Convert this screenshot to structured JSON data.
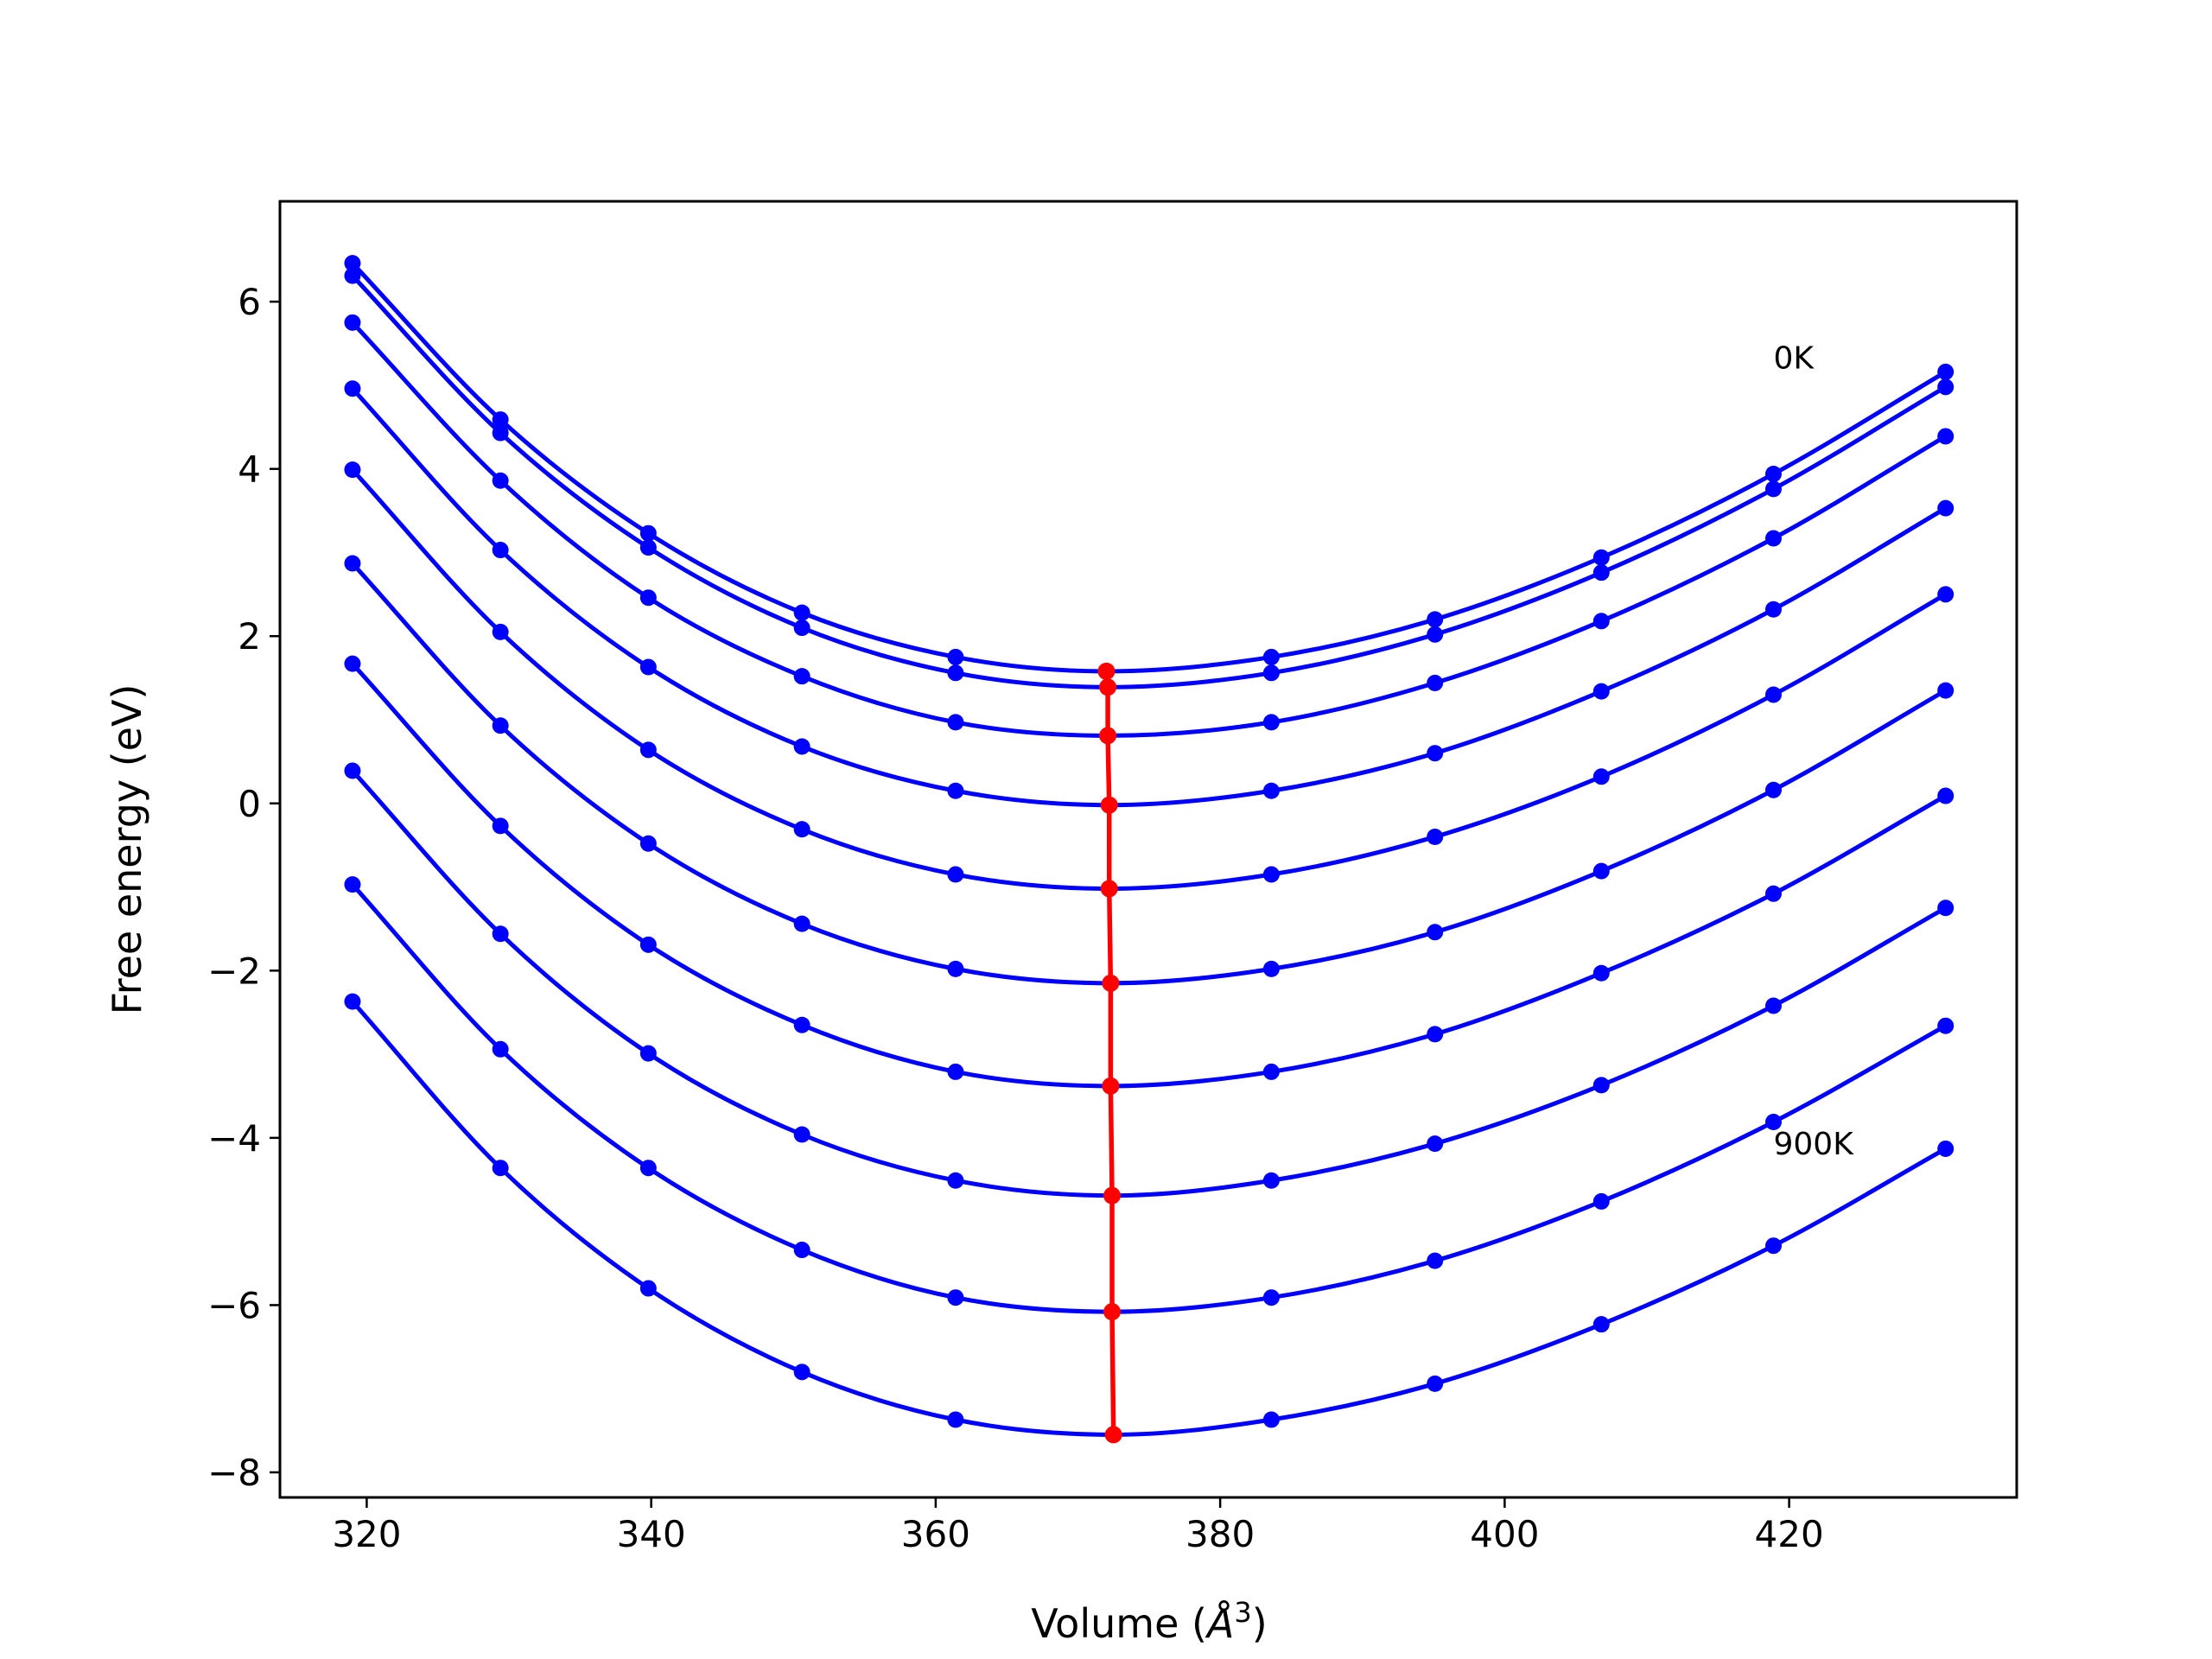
{
  "chart_data": {
    "type": "line",
    "xlabel": "Volume (",
    "xlabel_unit": "Å",
    "xlabel_exp": "3",
    "xlabel_close": ")",
    "ylabel": "Free energy (eV)",
    "xlim": [
      313.9,
      436.0
    ],
    "ylim": [
      -8.3,
      7.2
    ],
    "grid": false,
    "x_ticks": [
      320,
      340,
      360,
      380,
      400,
      420
    ],
    "x_tick_labels": [
      "320",
      "340",
      "360",
      "380",
      "400",
      "420"
    ],
    "y_ticks": [
      6,
      4,
      2,
      0,
      -2,
      -4,
      -6,
      -8
    ],
    "y_tick_labels": [
      "6",
      "4",
      "2",
      "0",
      "−2",
      "−4",
      "−6",
      "−8"
    ],
    "annotations": [
      {
        "text": "0K",
        "x": 418.9,
        "y": 5.2
      },
      {
        "text": "900K",
        "x": 418.9,
        "y": -4.2
      }
    ],
    "x": [
      319.0,
      329.4,
      339.8,
      350.6,
      361.4,
      383.6,
      395.1,
      406.8,
      418.9,
      431.0
    ],
    "series": [
      {
        "values": [
          6.46,
          4.59,
          3.23,
          2.28,
          1.75,
          1.75,
          2.2,
          2.94,
          3.94,
          5.16
        ],
        "vmin": [
          372.0,
          1.58
        ]
      },
      {
        "values": [
          6.31,
          4.43,
          3.06,
          2.1,
          1.56,
          1.56,
          2.02,
          2.76,
          3.76,
          4.98
        ],
        "vmin": [
          372.1,
          1.39
        ]
      },
      {
        "values": [
          5.75,
          3.86,
          2.46,
          1.52,
          0.97,
          0.97,
          1.44,
          2.18,
          3.17,
          4.39
        ],
        "vmin": [
          372.1,
          0.81
        ]
      },
      {
        "values": [
          4.96,
          3.03,
          1.63,
          0.68,
          0.15,
          0.15,
          0.6,
          1.34,
          2.32,
          3.53
        ],
        "vmin": [
          372.2,
          -0.02
        ]
      },
      {
        "values": [
          3.99,
          2.05,
          0.64,
          -0.31,
          -0.85,
          -0.85,
          -0.4,
          0.32,
          1.3,
          2.5
        ],
        "vmin": [
          372.2,
          -1.02
        ]
      },
      {
        "values": [
          2.87,
          0.93,
          -0.48,
          -1.44,
          -1.98,
          -1.98,
          -1.54,
          -0.81,
          0.16,
          1.35
        ],
        "vmin": [
          372.3,
          -2.15
        ]
      },
      {
        "values": [
          1.67,
          -0.27,
          -1.69,
          -2.65,
          -3.21,
          -3.21,
          -2.76,
          -2.03,
          -1.08,
          0.09
        ],
        "vmin": [
          372.3,
          -3.38
        ]
      },
      {
        "values": [
          0.39,
          -1.56,
          -2.99,
          -3.96,
          -4.51,
          -4.51,
          -4.07,
          -3.37,
          -2.42,
          -1.25
        ],
        "vmin": [
          372.4,
          -4.69
        ]
      },
      {
        "values": [
          -0.97,
          -2.94,
          -4.36,
          -5.34,
          -5.91,
          -5.91,
          -5.47,
          -4.76,
          -3.81,
          -2.66
        ],
        "vmin": [
          372.4,
          -6.08
        ]
      },
      {
        "values": [
          -2.37,
          -4.36,
          -5.8,
          -6.8,
          -7.37,
          -7.37,
          -6.94,
          -6.23,
          -5.29,
          -4.13
        ],
        "vmin": [
          372.5,
          -7.55
        ]
      }
    ],
    "colors": {
      "curves": "#0000ff",
      "minima": "#ff0000",
      "axes": "#000000",
      "background": "#ffffff"
    }
  }
}
